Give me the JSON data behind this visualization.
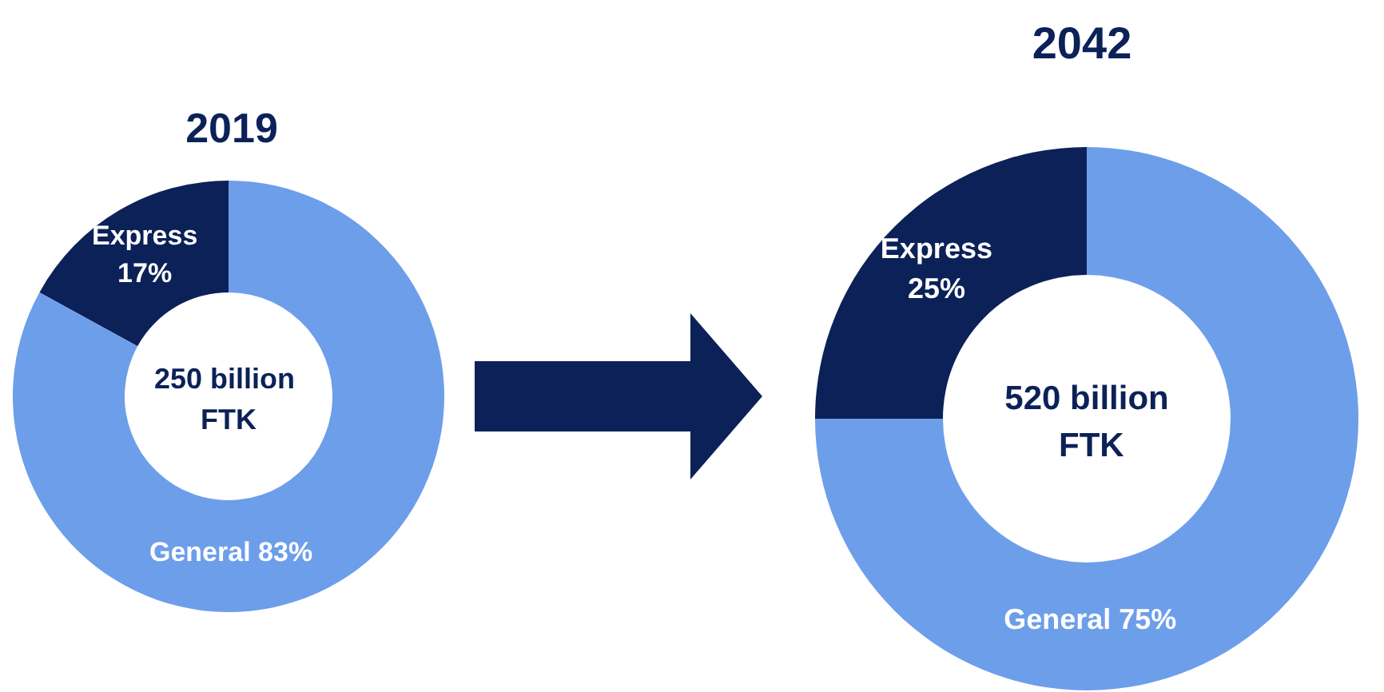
{
  "chart_data": [
    {
      "type": "donut",
      "title": "2019",
      "categories": [
        "Express",
        "General"
      ],
      "values": [
        17,
        83
      ],
      "colors": [
        "#0b2158",
        "#6d9eea"
      ],
      "value_labels": [
        "17%",
        "83%"
      ],
      "annotations": [
        "250 billion FTK"
      ]
    },
    {
      "type": "donut",
      "title": "2042",
      "categories": [
        "Express",
        "General"
      ],
      "values": [
        25,
        75
      ],
      "colors": [
        "#0b2158",
        "#6d9eea"
      ],
      "value_labels": [
        "25%",
        "75%"
      ],
      "annotations": [
        "520 billion FTK"
      ]
    }
  ]
}
